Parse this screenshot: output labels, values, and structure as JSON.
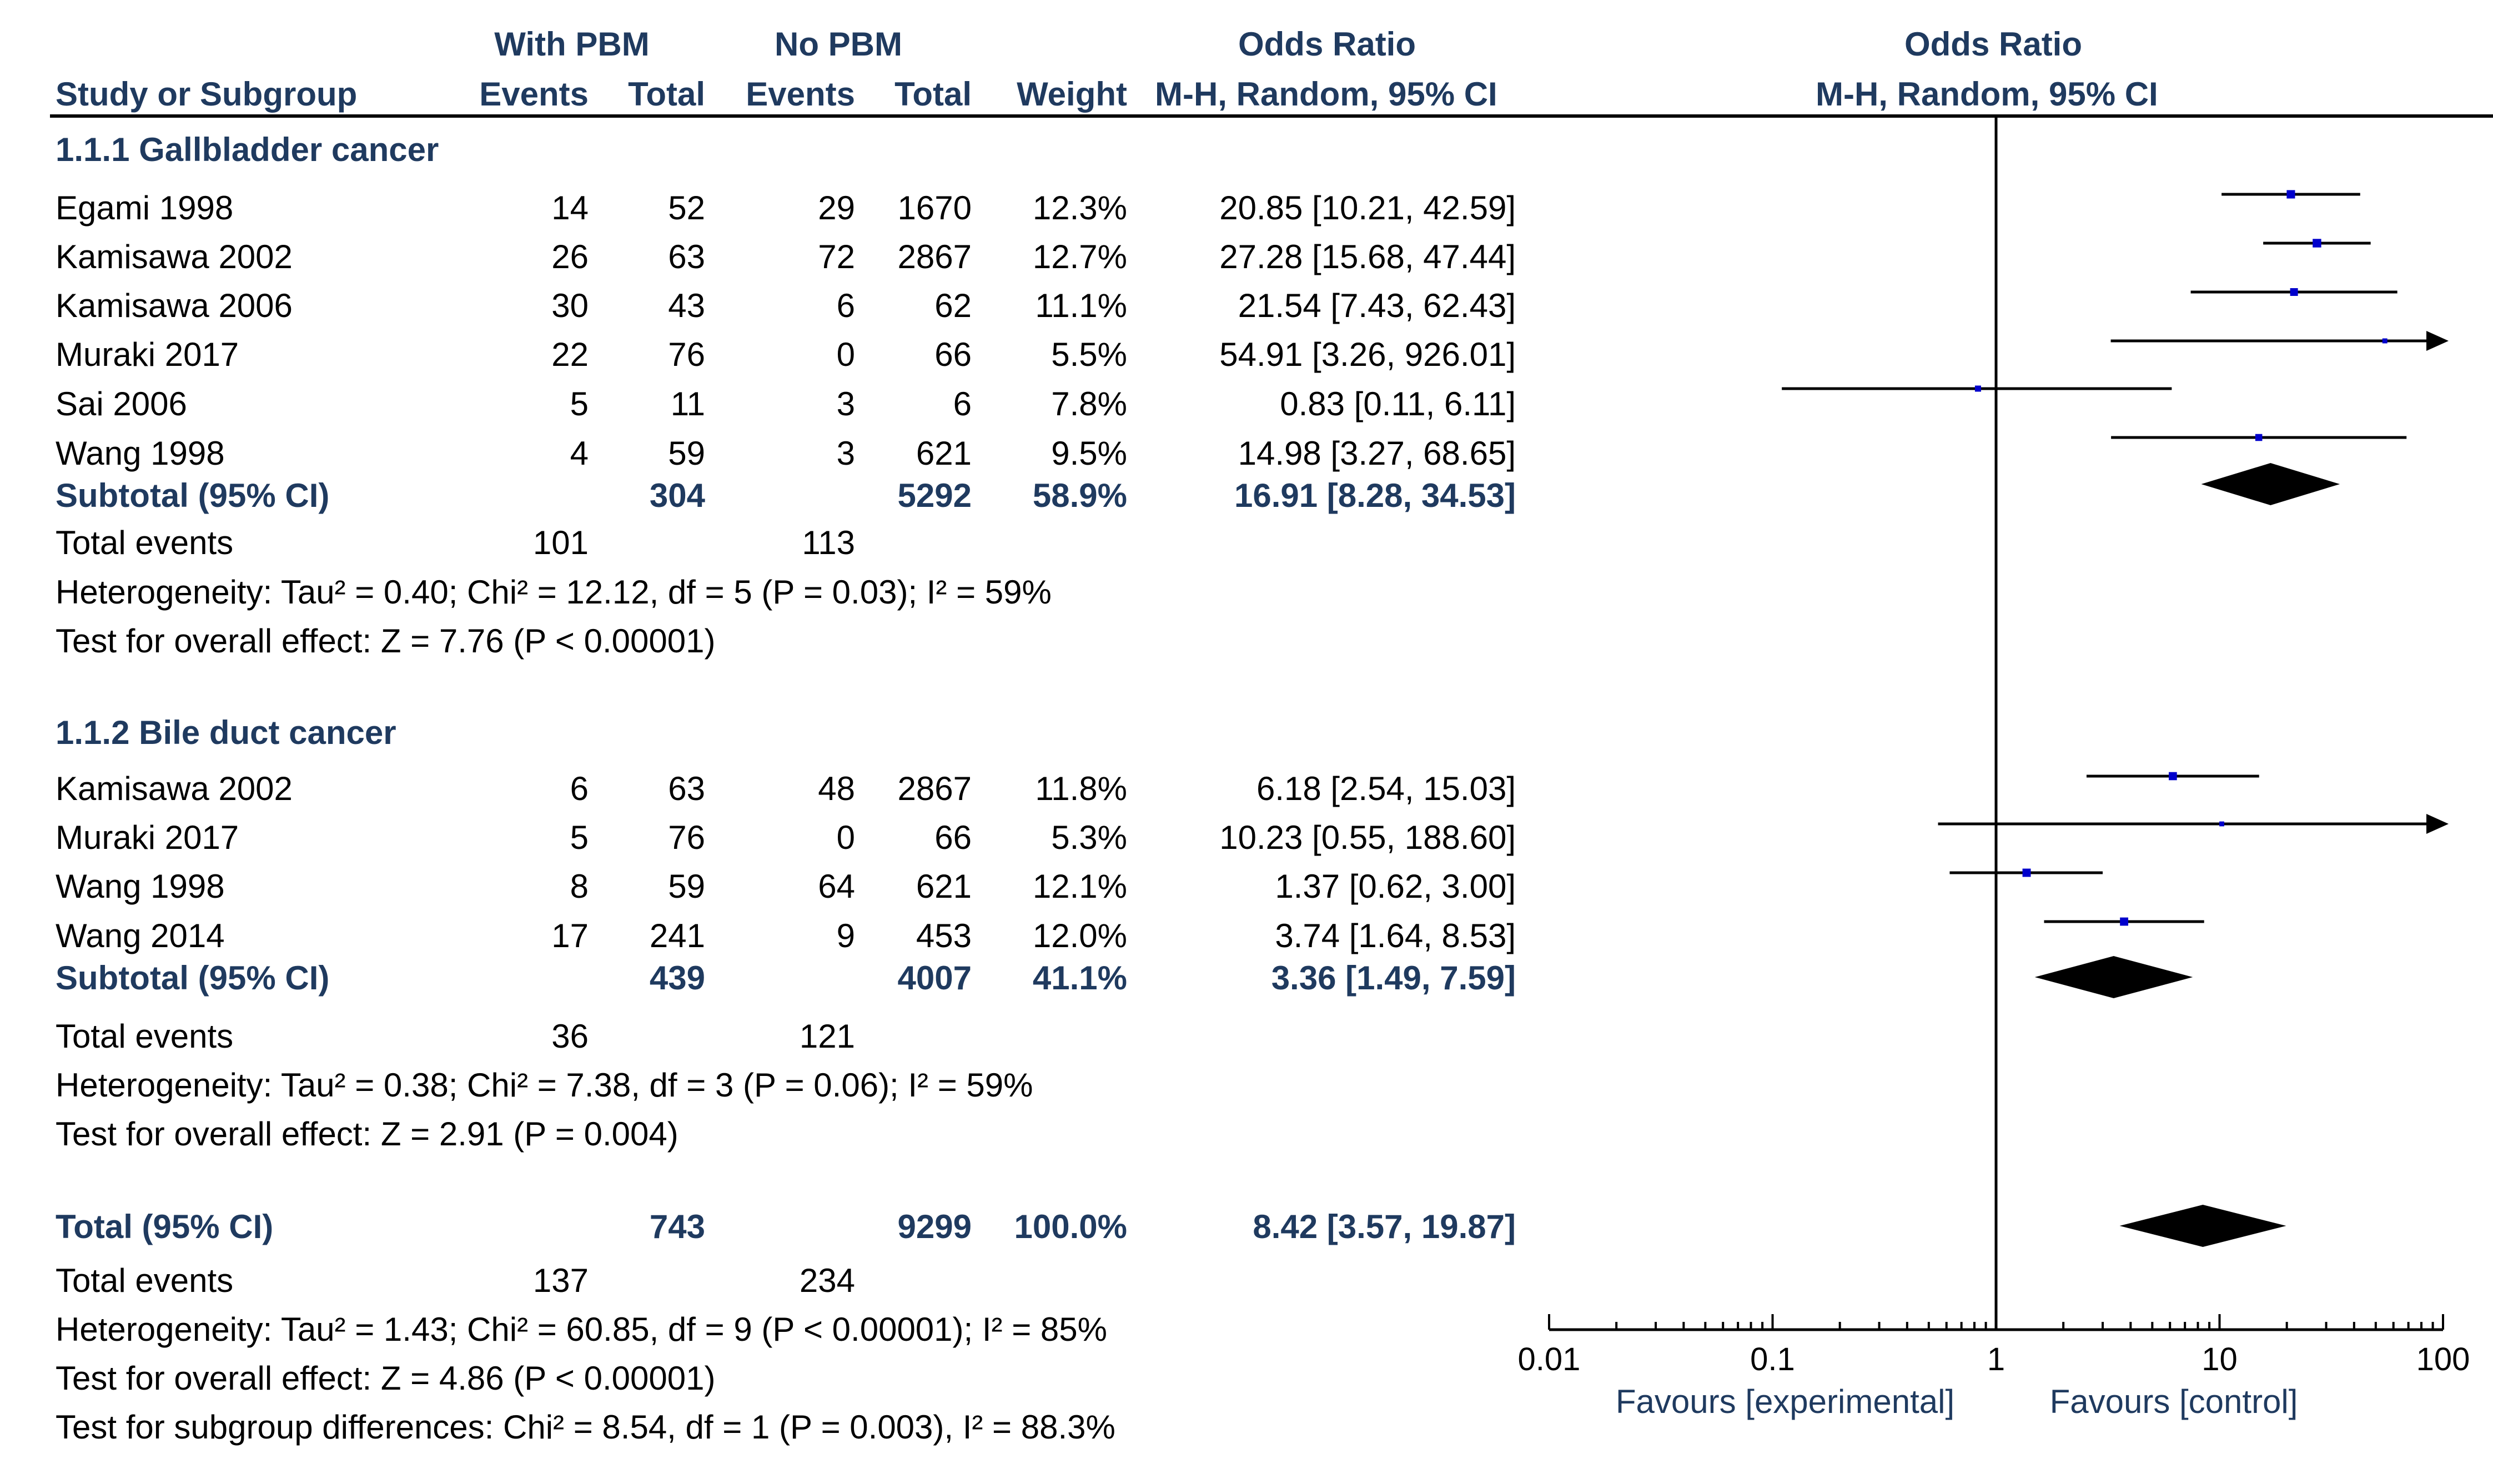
{
  "header": {
    "with_pbm": "With PBM",
    "no_pbm": "No PBM",
    "odds_ratio_left": "Odds Ratio",
    "odds_ratio_right": "Odds Ratio",
    "study": "Study or Subgroup",
    "events1": "Events",
    "total1": "Total",
    "events2": "Events",
    "total2": "Total",
    "weight": "Weight",
    "method_left": "M-H, Random, 95% CI",
    "method_right": "M-H, Random, 95% CI"
  },
  "rows": [
    {
      "kind": "group",
      "name": "1.1.1 Gallbladder cancer"
    },
    {
      "kind": "study",
      "name": "Egami 1998",
      "e1": "14",
      "t1": "52",
      "e2": "29",
      "t2": "1670",
      "w": "12.3%",
      "ci": "20.85 [10.21, 42.59]"
    },
    {
      "kind": "study",
      "name": "Kamisawa 2002",
      "e1": "26",
      "t1": "63",
      "e2": "72",
      "t2": "2867",
      "w": "12.7%",
      "ci": "27.28 [15.68, 47.44]"
    },
    {
      "kind": "study",
      "name": "Kamisawa 2006",
      "e1": "30",
      "t1": "43",
      "e2": "6",
      "t2": "62",
      "w": "11.1%",
      "ci": "21.54 [7.43, 62.43]"
    },
    {
      "kind": "study",
      "name": "Muraki 2017",
      "e1": "22",
      "t1": "76",
      "e2": "0",
      "t2": "66",
      "w": "5.5%",
      "ci": "54.91 [3.26, 926.01]"
    },
    {
      "kind": "study",
      "name": "Sai 2006",
      "e1": "5",
      "t1": "11",
      "e2": "3",
      "t2": "6",
      "w": "7.8%",
      "ci": "0.83 [0.11, 6.11]"
    },
    {
      "kind": "study",
      "name": "Wang 1998",
      "e1": "4",
      "t1": "59",
      "e2": "3",
      "t2": "621",
      "w": "9.5%",
      "ci": "14.98 [3.27, 68.65]"
    },
    {
      "kind": "subtotal",
      "name": "Subtotal (95% CI)",
      "e1": "",
      "t1": "304",
      "e2": "",
      "t2": "5292",
      "w": "58.9%",
      "ci": "16.91 [8.28, 34.53]"
    },
    {
      "kind": "events",
      "name": "Total events",
      "e1": "101",
      "e2": "113"
    },
    {
      "kind": "text",
      "name": "Heterogeneity: Tau² = 0.40; Chi² = 12.12, df = 5 (P = 0.03); I² = 59%"
    },
    {
      "kind": "text",
      "name": "Test for overall effect: Z = 7.76 (P < 0.00001)"
    },
    {
      "kind": "group",
      "name": "1.1.2 Bile duct cancer"
    },
    {
      "kind": "study",
      "name": "Kamisawa 2002",
      "e1": "6",
      "t1": "63",
      "e2": "48",
      "t2": "2867",
      "w": "11.8%",
      "ci": "6.18 [2.54, 15.03]"
    },
    {
      "kind": "study",
      "name": "Muraki 2017",
      "e1": "5",
      "t1": "76",
      "e2": "0",
      "t2": "66",
      "w": "5.3%",
      "ci": "10.23 [0.55, 188.60]"
    },
    {
      "kind": "study",
      "name": "Wang 1998",
      "e1": "8",
      "t1": "59",
      "e2": "64",
      "t2": "621",
      "w": "12.1%",
      "ci": "1.37 [0.62, 3.00]"
    },
    {
      "kind": "study",
      "name": "Wang 2014",
      "e1": "17",
      "t1": "241",
      "e2": "9",
      "t2": "453",
      "w": "12.0%",
      "ci": "3.74 [1.64, 8.53]"
    },
    {
      "kind": "subtotal",
      "name": "Subtotal (95% CI)",
      "e1": "",
      "t1": "439",
      "e2": "",
      "t2": "4007",
      "w": "41.1%",
      "ci": "3.36 [1.49, 7.59]"
    },
    {
      "kind": "events",
      "name": "Total events",
      "e1": "36",
      "e2": "121"
    },
    {
      "kind": "text",
      "name": "Heterogeneity: Tau² = 0.38; Chi² = 7.38, df = 3 (P = 0.06); I² = 59%"
    },
    {
      "kind": "text",
      "name": "Test for overall effect: Z = 2.91 (P = 0.004)"
    },
    {
      "kind": "total",
      "name": "Total (95% CI)",
      "e1": "",
      "t1": "743",
      "e2": "",
      "t2": "9299",
      "w": "100.0%",
      "ci": "8.42 [3.57, 19.87]"
    },
    {
      "kind": "events",
      "name": "Total events",
      "e1": "137",
      "e2": "234"
    },
    {
      "kind": "text",
      "name": "Heterogeneity: Tau² = 1.43; Chi² = 60.85, df = 9 (P < 0.00001); I² = 85%"
    },
    {
      "kind": "text",
      "name": "Test for overall effect: Z = 4.86 (P < 0.00001)"
    },
    {
      "kind": "text",
      "name": "Test for subgroup differences: Chi² = 8.54, df = 1 (P = 0.003), I² = 88.3%"
    }
  ],
  "chart_data": {
    "type": "forest",
    "title": "Odds Ratio",
    "xlabel_left": "Favours [experimental]",
    "xlabel_right": "Favours [control]",
    "x_scale": "log",
    "xlim": [
      0.01,
      100
    ],
    "ticks": [
      "0.01",
      "0.1",
      "1",
      "10",
      "100"
    ],
    "studies": [
      {
        "label": "Egami 1998",
        "or": 20.85,
        "lo": 10.21,
        "hi": 42.59,
        "weight": 12.3,
        "arrow": false
      },
      {
        "label": "Kamisawa 2002",
        "or": 27.28,
        "lo": 15.68,
        "hi": 47.44,
        "weight": 12.7,
        "arrow": false
      },
      {
        "label": "Kamisawa 2006",
        "or": 21.54,
        "lo": 7.43,
        "hi": 62.43,
        "weight": 11.1,
        "arrow": false
      },
      {
        "label": "Muraki 2017",
        "or": 54.91,
        "lo": 3.26,
        "hi": 926.01,
        "weight": 5.5,
        "arrow": true
      },
      {
        "label": "Sai 2006",
        "or": 0.83,
        "lo": 0.11,
        "hi": 6.11,
        "weight": 7.8,
        "arrow": false
      },
      {
        "label": "Wang 1998",
        "or": 14.98,
        "lo": 3.27,
        "hi": 68.65,
        "weight": 9.5,
        "arrow": false
      },
      {
        "label": "Kamisawa 2002",
        "or": 6.18,
        "lo": 2.54,
        "hi": 15.03,
        "weight": 11.8,
        "arrow": false
      },
      {
        "label": "Muraki 2017",
        "or": 10.23,
        "lo": 0.55,
        "hi": 188.6,
        "weight": 5.3,
        "arrow": true
      },
      {
        "label": "Wang 1998",
        "or": 1.37,
        "lo": 0.62,
        "hi": 3.0,
        "weight": 12.1,
        "arrow": false
      },
      {
        "label": "Wang 2014",
        "or": 3.74,
        "lo": 1.64,
        "hi": 8.53,
        "weight": 12.0,
        "arrow": false
      }
    ],
    "diamonds": [
      {
        "label": "Subtotal 1.1.1",
        "or": 16.91,
        "lo": 8.28,
        "hi": 34.53
      },
      {
        "label": "Subtotal 1.1.2",
        "or": 3.36,
        "lo": 1.49,
        "hi": 7.59
      },
      {
        "label": "Total",
        "or": 8.42,
        "lo": 3.57,
        "hi": 19.87
      }
    ],
    "colors": {
      "marker": "#0000cc",
      "line": "#000000",
      "diamond": "#000000",
      "label": "#1f3a5f"
    }
  }
}
